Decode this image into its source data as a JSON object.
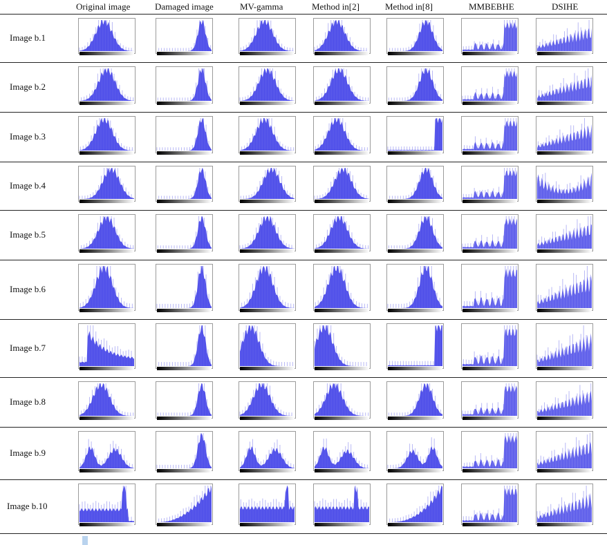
{
  "columns": [
    "Original image",
    "Damaged image",
    "MV-gamma",
    "Method in[2]",
    "Method in[8]",
    "MMBEBHE",
    "DSIHE"
  ],
  "rows": [
    "Image b.1",
    "Image b.2",
    "Image b.3",
    "Image b.4",
    "Image b.5",
    "Image b.6",
    "Image b.7",
    "Image b.8",
    "Image b.9",
    "Image b.10"
  ],
  "colors": {
    "histogram_fill": "#3a3ae6",
    "histogram_light": "#b8b8f5",
    "rule": "#222222"
  }
}
